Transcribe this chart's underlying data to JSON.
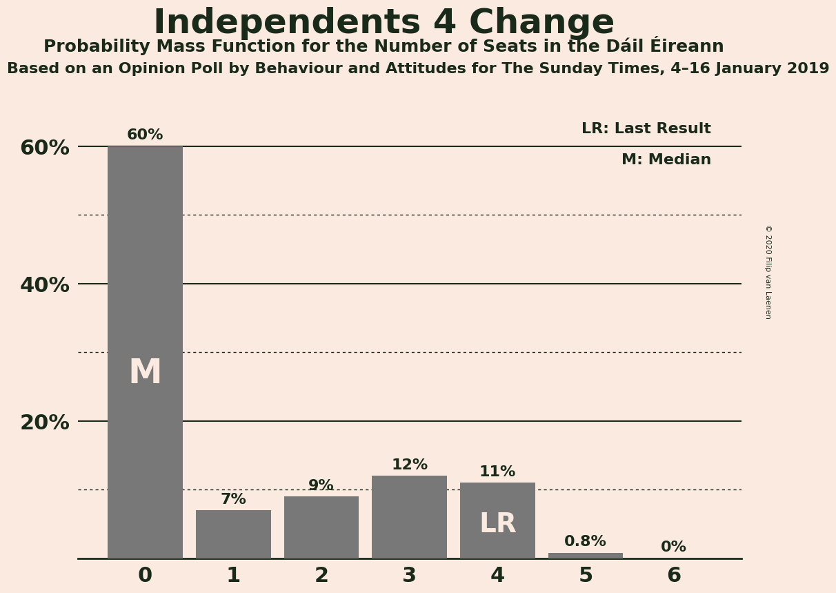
{
  "title": "Independents 4 Change",
  "subtitle1": "Probability Mass Function for the Number of Seats in the Dáil Éireann",
  "subtitle2": "Based on an Opinion Poll by Behaviour and Attitudes for The Sunday Times, 4–16 January 2019",
  "copyright": "© 2020 Filip van Laenen",
  "categories": [
    0,
    1,
    2,
    3,
    4,
    5,
    6
  ],
  "values": [
    0.6,
    0.07,
    0.09,
    0.12,
    0.11,
    0.008,
    0.0
  ],
  "labels": [
    "60%",
    "7%",
    "9%",
    "12%",
    "11%",
    "0.8%",
    "0%"
  ],
  "bar_color": "#787878",
  "background_color": "#faeae0",
  "text_color": "#1a2a1a",
  "label_color_outside": "#1a2a1a",
  "label_color_inside": "#faeae0",
  "median_bar": 0,
  "lr_bar": 4,
  "ylim_max": 0.65,
  "solid_lines": [
    0.2,
    0.4,
    0.6
  ],
  "dotted_lines": [
    0.1,
    0.3,
    0.5
  ],
  "legend_lr": "LR: Last Result",
  "legend_m": "M: Median"
}
